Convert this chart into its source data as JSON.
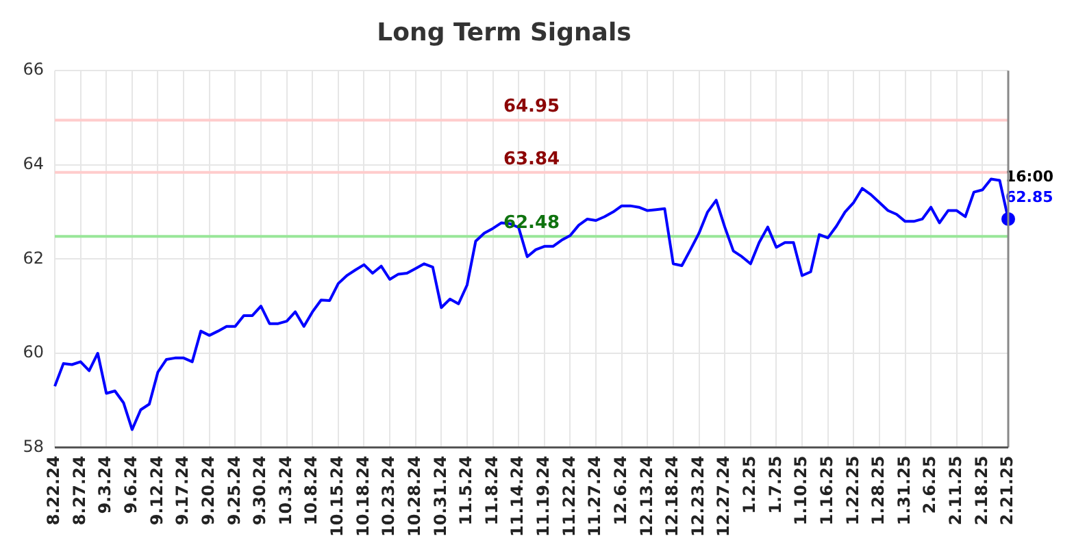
{
  "chart_data": {
    "type": "line",
    "title": "Long Term Signals",
    "categories": [
      "8.22.24",
      null,
      null,
      "8.27.24",
      null,
      null,
      "9.3.24",
      null,
      null,
      "9.6.24",
      null,
      null,
      "9.12.24",
      null,
      null,
      "9.17.24",
      null,
      null,
      "9.20.24",
      null,
      null,
      "9.25.24",
      null,
      null,
      "9.30.24",
      null,
      null,
      "10.3.24",
      null,
      null,
      "10.8.24",
      null,
      null,
      "10.15.24",
      null,
      null,
      "10.18.24",
      null,
      null,
      "10.23.24",
      null,
      null,
      "10.28.24",
      null,
      null,
      "10.31.24",
      null,
      null,
      "11.5.24",
      null,
      null,
      "11.8.24",
      null,
      null,
      "11.14.24",
      null,
      null,
      "11.19.24",
      null,
      null,
      "11.22.24",
      null,
      null,
      "11.27.24",
      null,
      null,
      "12.6.24",
      null,
      null,
      "12.13.24",
      null,
      null,
      "12.18.24",
      null,
      null,
      "12.23.24",
      null,
      null,
      "12.27.24",
      null,
      null,
      "1.2.25",
      null,
      null,
      "1.7.25",
      null,
      null,
      "1.10.25",
      null,
      null,
      "1.16.25",
      null,
      null,
      "1.22.25",
      null,
      null,
      "1.28.25",
      null,
      null,
      "1.31.25",
      null,
      null,
      "2.6.25",
      null,
      null,
      "2.11.25",
      null,
      null,
      "2.18.25",
      null,
      null,
      "2.21.25"
    ],
    "series": [
      {
        "type": "line",
        "color": "#0000ff",
        "marker": "none",
        "values": [
          59.3,
          59.78,
          59.76,
          59.82,
          59.63,
          60.0,
          59.15,
          59.2,
          58.95,
          58.38,
          58.8,
          58.92,
          59.6,
          59.87,
          59.9,
          59.9,
          59.82,
          60.47,
          60.38,
          60.47,
          60.57,
          60.57,
          60.8,
          60.8,
          61.0,
          60.63,
          60.63,
          60.68,
          60.88,
          60.57,
          60.88,
          61.13,
          61.12,
          61.48,
          61.65,
          61.77,
          61.88,
          61.7,
          61.85,
          61.57,
          61.68,
          61.7,
          61.8,
          61.9,
          61.83,
          60.97,
          61.15,
          61.05,
          61.45,
          62.38,
          62.55,
          62.65,
          62.77,
          62.75,
          62.67,
          62.05,
          62.2,
          62.27,
          62.27,
          62.4,
          62.5,
          62.72,
          62.85,
          62.82,
          62.9,
          63.0,
          63.13,
          63.13,
          63.1,
          63.03,
          63.05,
          63.07,
          61.9,
          61.86,
          62.2,
          62.55,
          63.0,
          63.25,
          62.68,
          62.17,
          62.05,
          61.9,
          62.35,
          62.68,
          62.25,
          62.35,
          62.35,
          61.65,
          61.73,
          62.52,
          62.45,
          62.7,
          63.0,
          63.2,
          63.5,
          63.37,
          63.2,
          63.03,
          62.95,
          62.8,
          62.8,
          62.85,
          63.1,
          62.77,
          63.03,
          63.03,
          62.9,
          63.42,
          63.47,
          63.7,
          63.67,
          62.85
        ]
      },
      {
        "type": "scatter",
        "color": "#0000ff",
        "marker": "circle",
        "x": [
          "2.21.25"
        ],
        "values": [
          62.85
        ]
      }
    ],
    "ylim": [
      58,
      66
    ],
    "yticks": [
      58,
      60,
      62,
      64,
      66
    ],
    "grid": true,
    "legend": false,
    "line_style": "solid",
    "ref_lines": [
      {
        "axis": "y",
        "value": 64.95,
        "label": "64.95",
        "color": "#ffcccc"
      },
      {
        "axis": "y",
        "value": 63.84,
        "label": "63.84",
        "color": "#ffcccc"
      },
      {
        "axis": "y",
        "value": 62.48,
        "label": "62.48",
        "color": "#99e699"
      }
    ],
    "annotations": [
      {
        "text": "16:00",
        "x": "2.21.25",
        "y": 62.85
      },
      {
        "text": "62.85",
        "x": "2.21.25",
        "y": 62.85
      }
    ]
  }
}
